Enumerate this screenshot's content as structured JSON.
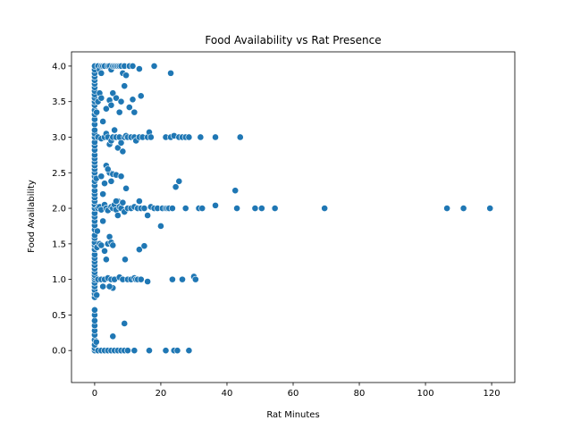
{
  "chart_data": {
    "type": "scatter",
    "title": "Food Availability vs Rat Presence",
    "xlabel": "Rat Minutes",
    "ylabel": "Food Availability",
    "xlim": [
      -7,
      127
    ],
    "ylim": [
      -0.45,
      4.2
    ],
    "x_ticks": [
      0,
      20,
      40,
      60,
      80,
      100,
      120
    ],
    "y_ticks": [
      0.0,
      0.5,
      1.0,
      1.5,
      2.0,
      2.5,
      3.0,
      3.5,
      4.0
    ],
    "x_tick_labels": [
      "0",
      "20",
      "40",
      "60",
      "80",
      "100",
      "120"
    ],
    "y_tick_labels": [
      "0.0",
      "0.5",
      "1.0",
      "1.5",
      "2.0",
      "2.5",
      "3.0",
      "3.5",
      "4.0"
    ],
    "grid": false,
    "marker_color": "#1f77b4",
    "points": [
      [
        0,
        0
      ],
      [
        0,
        0.03
      ],
      [
        0,
        0.08
      ],
      [
        0,
        0.15
      ],
      [
        0,
        0.22
      ],
      [
        0,
        0.28
      ],
      [
        0,
        0.35
      ],
      [
        0,
        0.42
      ],
      [
        0,
        0.5
      ],
      [
        0,
        0.57
      ],
      [
        0,
        0.75
      ],
      [
        0,
        0.8
      ],
      [
        0,
        0.85
      ],
      [
        0,
        0.9
      ],
      [
        0,
        0.95
      ],
      [
        0,
        1.0
      ],
      [
        0,
        1.03
      ],
      [
        0,
        1.06
      ],
      [
        0,
        1.1
      ],
      [
        0,
        1.15
      ],
      [
        0,
        1.2
      ],
      [
        0,
        1.25
      ],
      [
        0,
        1.3
      ],
      [
        0,
        1.35
      ],
      [
        0,
        1.42
      ],
      [
        0,
        1.48
      ],
      [
        0,
        1.52
      ],
      [
        0,
        1.58
      ],
      [
        0,
        1.62
      ],
      [
        0,
        1.7
      ],
      [
        0,
        1.76
      ],
      [
        0,
        1.82
      ],
      [
        0,
        1.88
      ],
      [
        0,
        1.93
      ],
      [
        0,
        2.0
      ],
      [
        0,
        2.05
      ],
      [
        0,
        2.1
      ],
      [
        0,
        2.15
      ],
      [
        0,
        2.2
      ],
      [
        0,
        2.25
      ],
      [
        0,
        2.32
      ],
      [
        0,
        2.38
      ],
      [
        0,
        2.45
      ],
      [
        0,
        2.5
      ],
      [
        0,
        2.55
      ],
      [
        0,
        2.6
      ],
      [
        0,
        2.65
      ],
      [
        0,
        2.7
      ],
      [
        0,
        2.75
      ],
      [
        0,
        2.82
      ],
      [
        0,
        2.88
      ],
      [
        0,
        2.93
      ],
      [
        0,
        3.0
      ],
      [
        0,
        3.05
      ],
      [
        0,
        3.1
      ],
      [
        0,
        3.18
      ],
      [
        0,
        3.25
      ],
      [
        0,
        3.32
      ],
      [
        0,
        3.38
      ],
      [
        0,
        3.45
      ],
      [
        0,
        3.5
      ],
      [
        0,
        3.55
      ],
      [
        0,
        3.6
      ],
      [
        0,
        3.65
      ],
      [
        0,
        3.7
      ],
      [
        0,
        3.75
      ],
      [
        0,
        3.8
      ],
      [
        0,
        3.85
      ],
      [
        0,
        3.9
      ],
      [
        0,
        3.95
      ],
      [
        0,
        4.0
      ],
      [
        0.5,
        0.12
      ],
      [
        0.6,
        0.78
      ],
      [
        0.7,
        1.45
      ],
      [
        0.5,
        2.42
      ],
      [
        0.6,
        3.35
      ],
      [
        0.8,
        1.68
      ],
      [
        1,
        0
      ],
      [
        2,
        0
      ],
      [
        3,
        0
      ],
      [
        4,
        0
      ],
      [
        5,
        0
      ],
      [
        6,
        0
      ],
      [
        7,
        0
      ],
      [
        8,
        0
      ],
      [
        9,
        0
      ],
      [
        10,
        0
      ],
      [
        12,
        0
      ],
      [
        16.5,
        0
      ],
      [
        21.5,
        0
      ],
      [
        24,
        0
      ],
      [
        25,
        0
      ],
      [
        28.5,
        0
      ],
      [
        5.5,
        0.2
      ],
      [
        9,
        0.38
      ],
      [
        1,
        1.0
      ],
      [
        2,
        1.0
      ],
      [
        3,
        1.0
      ],
      [
        4,
        1.02
      ],
      [
        5,
        1.0
      ],
      [
        6,
        1.0
      ],
      [
        7.5,
        1.03
      ],
      [
        8.5,
        1.0
      ],
      [
        10,
        1.0
      ],
      [
        11,
        1.0
      ],
      [
        12,
        1.02
      ],
      [
        12.5,
        1.0
      ],
      [
        13,
        1.0
      ],
      [
        14,
        1.0
      ],
      [
        16,
        0.97
      ],
      [
        23.5,
        1.0
      ],
      [
        26.5,
        1.0
      ],
      [
        30,
        1.04
      ],
      [
        30.5,
        1.0
      ],
      [
        5.5,
        0.88
      ],
      [
        4.5,
        0.9
      ],
      [
        2.5,
        0.9
      ],
      [
        9.2,
        1.28
      ],
      [
        3.5,
        1.28
      ],
      [
        1.5,
        1.5
      ],
      [
        3,
        1.4
      ],
      [
        4,
        1.5
      ],
      [
        4.5,
        1.6
      ],
      [
        5,
        1.52
      ],
      [
        5.5,
        1.48
      ],
      [
        13.5,
        1.42
      ],
      [
        15,
        1.47
      ],
      [
        2,
        1.48
      ],
      [
        1,
        2.0
      ],
      [
        1.5,
        2.02
      ],
      [
        2,
        1.98
      ],
      [
        3,
        2.05
      ],
      [
        3.5,
        2.0
      ],
      [
        4,
        1.97
      ],
      [
        5,
        2.02
      ],
      [
        5.5,
        2.0
      ],
      [
        6,
        2.05
      ],
      [
        6.5,
        1.98
      ],
      [
        7,
        2.1
      ],
      [
        7.5,
        2.02
      ],
      [
        8,
        2.0
      ],
      [
        8.5,
        2.08
      ],
      [
        9,
        1.95
      ],
      [
        10,
        2.0
      ],
      [
        11,
        2.0
      ],
      [
        12,
        2.02
      ],
      [
        13,
        2.0
      ],
      [
        13.5,
        2.1
      ],
      [
        14,
        2.0
      ],
      [
        15,
        2.0
      ],
      [
        16,
        1.9
      ],
      [
        17,
        2.02
      ],
      [
        18,
        2.0
      ],
      [
        19,
        2.0
      ],
      [
        20,
        1.75
      ],
      [
        20.5,
        2.0
      ],
      [
        21.5,
        2.0
      ],
      [
        22,
        2.0
      ],
      [
        22.5,
        2.0
      ],
      [
        23.5,
        2.0
      ],
      [
        24.5,
        2.3
      ],
      [
        25.5,
        2.38
      ],
      [
        27.5,
        2.0
      ],
      [
        31.5,
        2.0
      ],
      [
        32.5,
        2.0
      ],
      [
        36.5,
        2.04
      ],
      [
        42.5,
        2.25
      ],
      [
        43,
        2.0
      ],
      [
        48.5,
        2.0
      ],
      [
        50.5,
        2.0
      ],
      [
        54.5,
        2.0
      ],
      [
        69.5,
        2.0
      ],
      [
        106.5,
        2.0
      ],
      [
        111.5,
        2.0
      ],
      [
        119.5,
        2.0
      ],
      [
        6.5,
        2.1
      ],
      [
        2.5,
        1.82
      ],
      [
        7,
        1.9
      ],
      [
        2,
        2.45
      ],
      [
        3,
        2.35
      ],
      [
        3.5,
        2.6
      ],
      [
        4.5,
        2.5
      ],
      [
        5,
        2.38
      ],
      [
        5.5,
        2.48
      ],
      [
        6.5,
        2.47
      ],
      [
        8,
        2.45
      ],
      [
        9.5,
        2.28
      ],
      [
        2.5,
        2.2
      ],
      [
        4,
        2.55
      ],
      [
        1,
        3.0
      ],
      [
        2,
        2.98
      ],
      [
        3,
        3.0
      ],
      [
        3.5,
        3.05
      ],
      [
        4,
        3.0
      ],
      [
        4.5,
        2.9
      ],
      [
        5,
        2.95
      ],
      [
        5.5,
        3.0
      ],
      [
        6,
        3.1
      ],
      [
        6.5,
        3.0
      ],
      [
        7,
        2.85
      ],
      [
        7.5,
        3.0
      ],
      [
        8,
        2.92
      ],
      [
        8.5,
        2.8
      ],
      [
        9,
        3.0
      ],
      [
        9.5,
        3.02
      ],
      [
        10,
        3.0
      ],
      [
        11,
        3.0
      ],
      [
        12,
        3.0
      ],
      [
        12.5,
        2.95
      ],
      [
        13.5,
        3.0
      ],
      [
        14.5,
        3.0
      ],
      [
        16,
        3.0
      ],
      [
        16.5,
        3.07
      ],
      [
        17,
        3.0
      ],
      [
        21.5,
        3.0
      ],
      [
        23,
        3.0
      ],
      [
        24,
        3.02
      ],
      [
        25.5,
        3.0
      ],
      [
        26.5,
        3.0
      ],
      [
        27.5,
        3.0
      ],
      [
        28.5,
        3.0
      ],
      [
        32,
        3.0
      ],
      [
        36.5,
        3.0
      ],
      [
        44,
        3.0
      ],
      [
        2.5,
        3.22
      ],
      [
        1,
        3.5
      ],
      [
        1.5,
        3.62
      ],
      [
        2,
        3.55
      ],
      [
        3.5,
        3.4
      ],
      [
        4.5,
        3.52
      ],
      [
        5,
        3.45
      ],
      [
        5.5,
        3.62
      ],
      [
        6.5,
        3.55
      ],
      [
        7.5,
        3.35
      ],
      [
        8,
        3.5
      ],
      [
        9,
        3.72
      ],
      [
        10.5,
        3.42
      ],
      [
        11.5,
        3.53
      ],
      [
        12,
        3.35
      ],
      [
        14,
        3.58
      ],
      [
        1,
        4.0
      ],
      [
        1.5,
        3.95
      ],
      [
        2,
        4.0
      ],
      [
        2.5,
        4.0
      ],
      [
        3,
        4.0
      ],
      [
        4,
        4.0
      ],
      [
        4.5,
        4.0
      ],
      [
        5,
        3.95
      ],
      [
        5.5,
        4.0
      ],
      [
        6,
        4.0
      ],
      [
        6.5,
        4.0
      ],
      [
        7,
        4.0
      ],
      [
        7.5,
        4.0
      ],
      [
        8,
        4.0
      ],
      [
        8.5,
        3.9
      ],
      [
        9,
        4.0
      ],
      [
        9.5,
        3.87
      ],
      [
        10.5,
        4.0
      ],
      [
        11.5,
        4.0
      ],
      [
        13.5,
        3.96
      ],
      [
        18,
        4.0
      ],
      [
        23,
        3.9
      ],
      [
        2,
        3.9
      ]
    ]
  }
}
